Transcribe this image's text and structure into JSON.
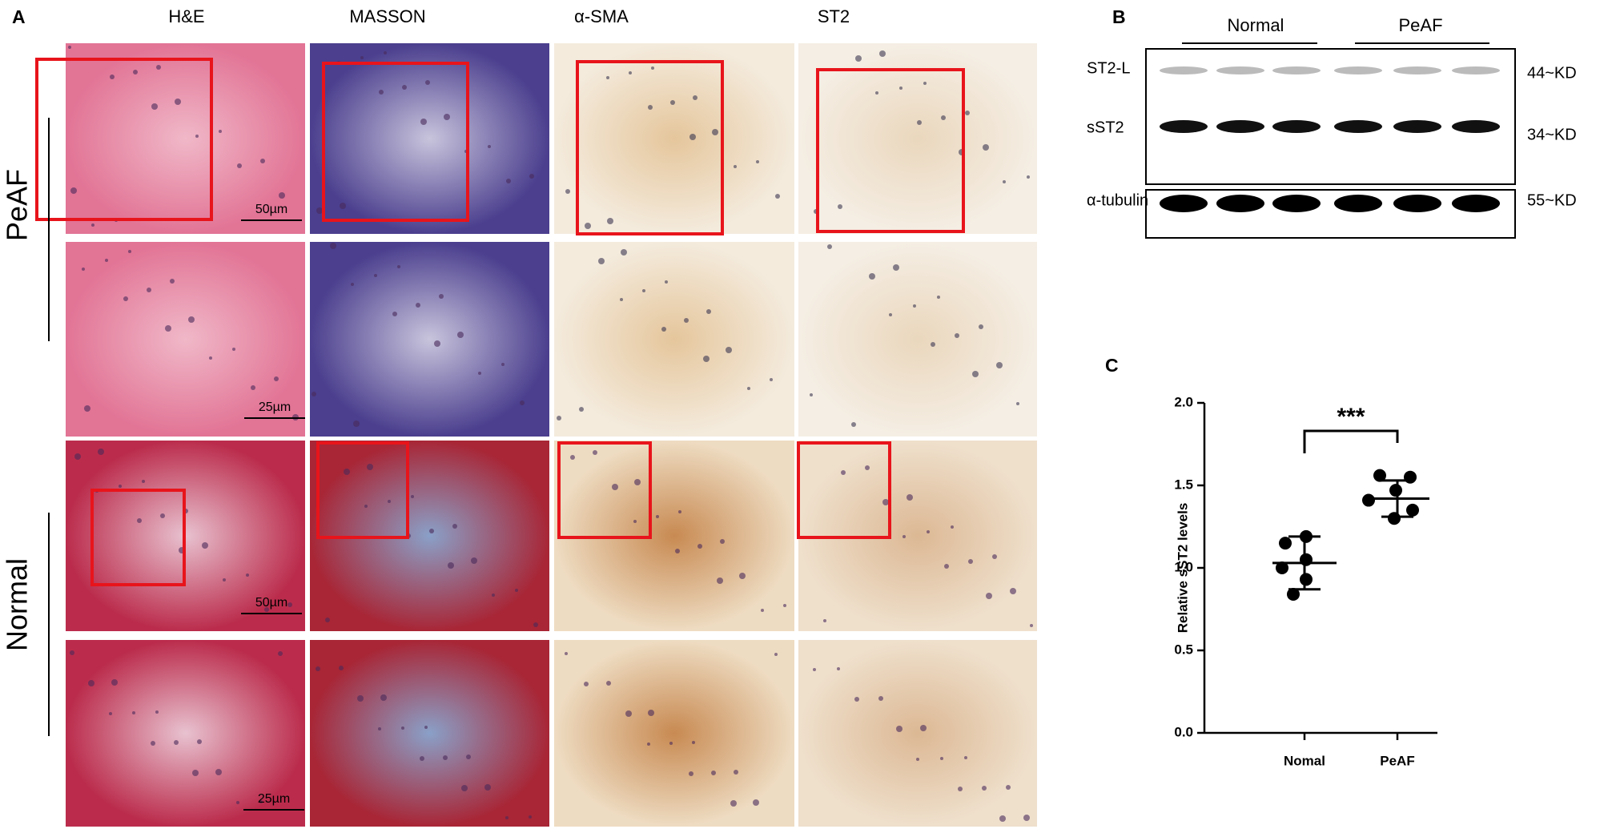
{
  "panel_a": {
    "label": "A",
    "columns": [
      "H&E",
      "MASSON",
      "α-SMA",
      "ST2"
    ],
    "rows": [
      "PeAF",
      "Normal"
    ],
    "scale_bars": [
      "50µm",
      "25µm",
      "50µm",
      "25µm"
    ]
  },
  "panel_b": {
    "label": "B",
    "groups": [
      "Normal",
      "PeAF"
    ],
    "bands": [
      "ST2-L",
      "sST2",
      "α-tubulin"
    ],
    "sizes": [
      "44~KD",
      "34~KD",
      "55~KD"
    ]
  },
  "panel_c": {
    "label": "C"
  },
  "chart_data": {
    "type": "scatter",
    "y_label": "Relative sST2 levels",
    "annotation": "***",
    "categories": [
      "Nomal",
      "PeAF"
    ],
    "values": [
      [
        1.19,
        1.15,
        1.05,
        1.0,
        0.93,
        0.84
      ],
      [
        1.56,
        1.55,
        1.47,
        1.41,
        1.35,
        1.3
      ]
    ],
    "means": [
      1.03,
      1.42
    ],
    "sd": [
      0.16,
      0.11
    ],
    "color": "#000000",
    "ylim": [
      0,
      2.0
    ],
    "yticks": [
      {
        "value": 0,
        "label": "0.0"
      },
      0.5,
      {
        "value": 1.0,
        "label": "1.0"
      },
      1.5,
      {
        "value": 2.0,
        "label": "2.0"
      }
    ]
  }
}
